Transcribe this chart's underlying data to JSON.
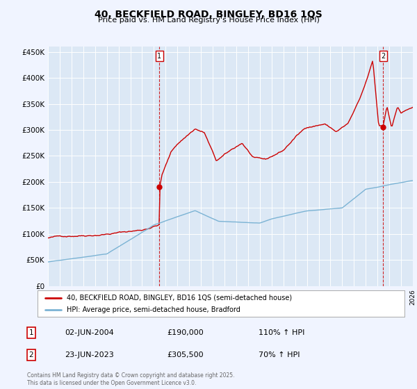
{
  "title": "40, BECKFIELD ROAD, BINGLEY, BD16 1QS",
  "subtitle": "Price paid vs. HM Land Registry's House Price Index (HPI)",
  "red_label": "40, BECKFIELD ROAD, BINGLEY, BD16 1QS (semi-detached house)",
  "blue_label": "HPI: Average price, semi-detached house, Bradford",
  "annotation1_date": "02-JUN-2004",
  "annotation1_price": "£190,000",
  "annotation1_hpi": "110% ↑ HPI",
  "annotation2_date": "23-JUN-2023",
  "annotation2_price": "£305,500",
  "annotation2_hpi": "70% ↑ HPI",
  "footer": "Contains HM Land Registry data © Crown copyright and database right 2025.\nThis data is licensed under the Open Government Licence v3.0.",
  "ylim": [
    0,
    460000
  ],
  "yticks": [
    0,
    50000,
    100000,
    150000,
    200000,
    250000,
    300000,
    350000,
    400000,
    450000
  ],
  "ytick_labels": [
    "£0",
    "£50K",
    "£100K",
    "£150K",
    "£200K",
    "£250K",
    "£300K",
    "£350K",
    "£400K",
    "£450K"
  ],
  "red_color": "#cc0000",
  "blue_color": "#7bb3d4",
  "marker1_x": 2004.45,
  "marker1_y": 190000,
  "marker2_x": 2023.48,
  "marker2_y": 305500,
  "dashed_line1_x": 2004.45,
  "dashed_line2_x": 2023.48,
  "bg_color": "#f0f4ff",
  "plot_bg": "#dce8f5",
  "grid_color": "#ffffff",
  "xmin": 1995,
  "xmax": 2026
}
